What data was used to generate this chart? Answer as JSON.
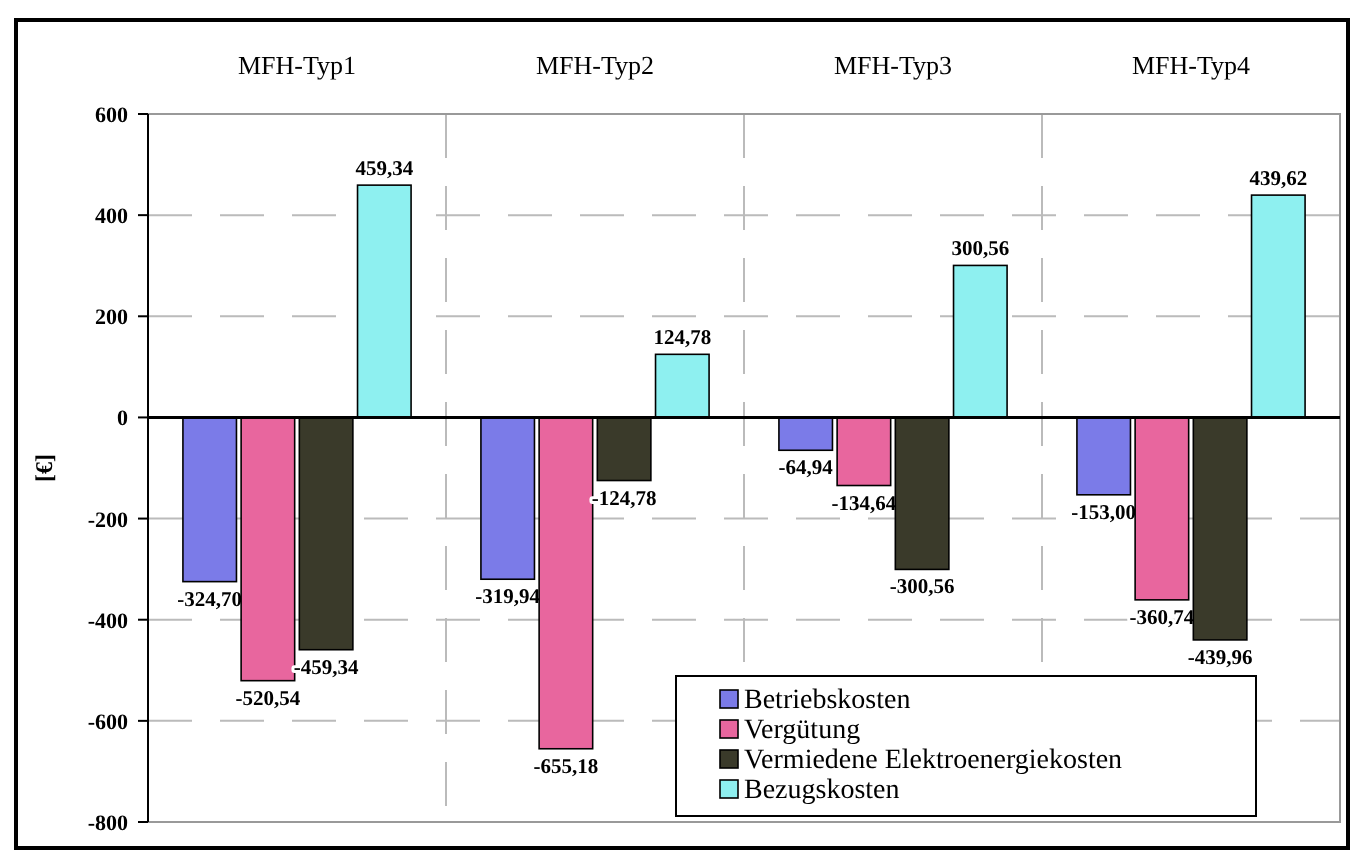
{
  "chart_data": {
    "type": "bar",
    "ylabel": "[€]",
    "categories": [
      "MFH-Typ1",
      "MFH-Typ2",
      "MFH-Typ3",
      "MFH-Typ4"
    ],
    "series": [
      {
        "name": "Betriebskosten",
        "color": "#7b7be8",
        "values": [
          -324.7,
          -319.94,
          -64.94,
          -153.0
        ],
        "value_labels": [
          "-324,70",
          "-319,94",
          "-64,94",
          "-153,00"
        ]
      },
      {
        "name": "Vergütung",
        "color": "#e8669e",
        "values": [
          -520.54,
          -655.18,
          -134.64,
          -360.74
        ],
        "value_labels": [
          "-520,54",
          "-655,18",
          "-134,64",
          "-360,74"
        ]
      },
      {
        "name": "Vermiedene Elektroenergiekosten",
        "color": "#3a3a2a",
        "values": [
          -459.34,
          -124.78,
          -300.56,
          -439.96
        ],
        "value_labels": [
          "-459,34",
          "-124,78",
          "-300,56",
          "-439,96"
        ]
      },
      {
        "name": "Bezugskosten",
        "color": "#8ef0f0",
        "values": [
          459.34,
          124.78,
          300.56,
          439.62
        ],
        "value_labels": [
          "459,34",
          "124,78",
          "300,56",
          "439,62"
        ]
      }
    ],
    "ylim": [
      -800,
      600
    ],
    "yticks": [
      -800,
      -600,
      -400,
      -200,
      0,
      200,
      400,
      600
    ],
    "grid": true,
    "legend": "bottom right"
  }
}
